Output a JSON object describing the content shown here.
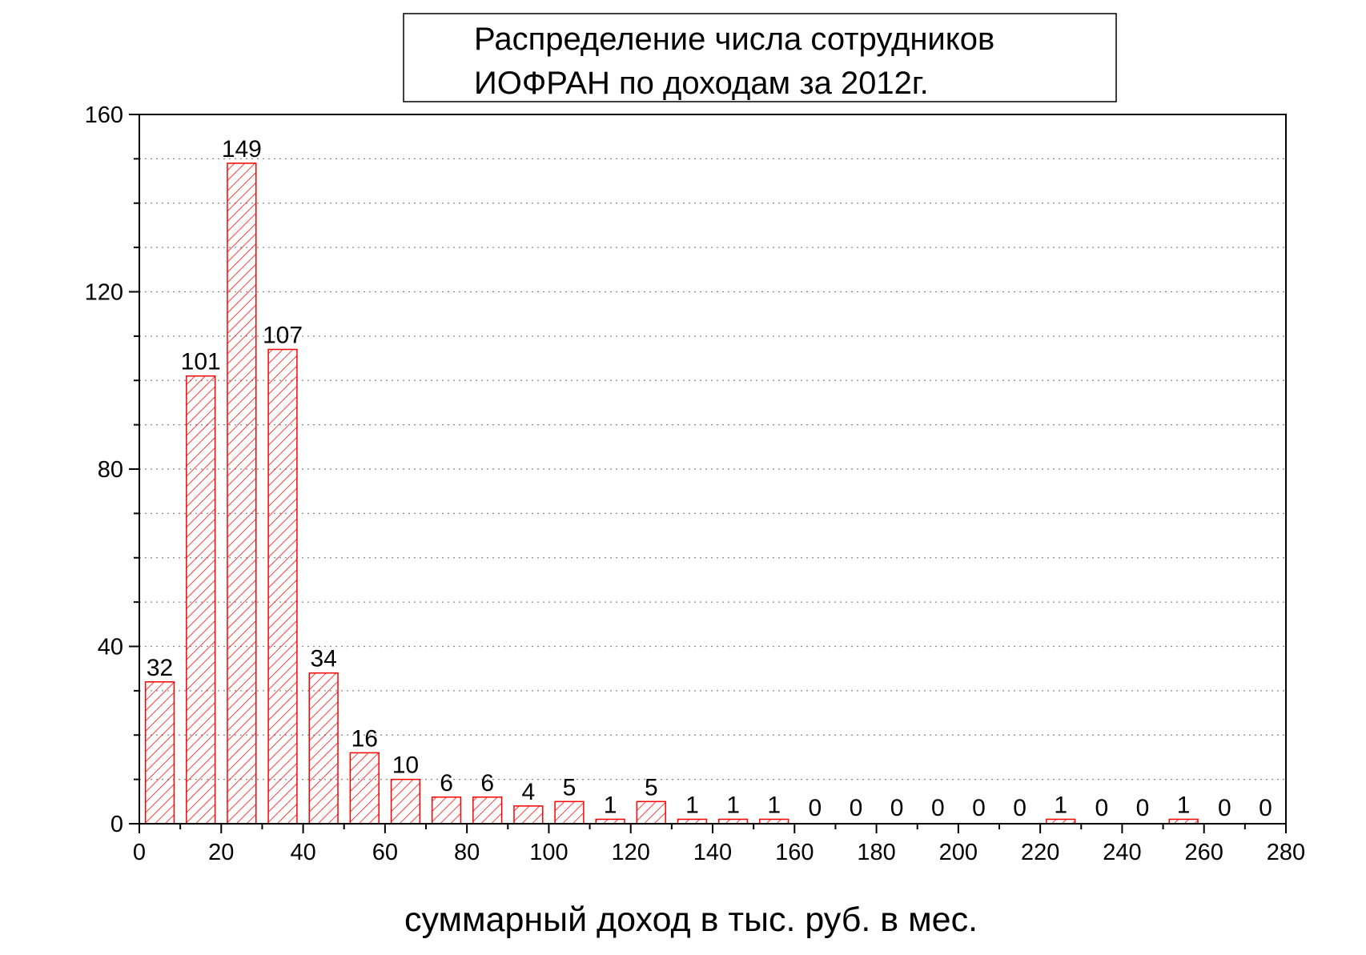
{
  "chart_data": {
    "type": "bar",
    "title_lines": [
      "Распределение числа сотрудников",
      "ИОФРАН по доходам за 2012г."
    ],
    "xlabel": "суммарный доход в тыс. руб. в мес.",
    "ylabel": "",
    "xlim": [
      0,
      280
    ],
    "ylim": [
      0,
      160
    ],
    "x_ticks": [
      0,
      20,
      40,
      60,
      80,
      100,
      120,
      140,
      160,
      180,
      200,
      220,
      240,
      260,
      280
    ],
    "y_ticks": [
      0,
      40,
      80,
      120,
      160
    ],
    "y_minor_step": 10,
    "y_grid_step": 10,
    "grid": true,
    "bar_color": "#ff0000",
    "bar_fill": "hatched",
    "bar_width": 7,
    "x": [
      5,
      15,
      25,
      35,
      45,
      55,
      65,
      75,
      85,
      95,
      105,
      115,
      125,
      135,
      145,
      155,
      165,
      175,
      185,
      195,
      205,
      215,
      225,
      235,
      245,
      255,
      265,
      275
    ],
    "values": [
      32,
      101,
      149,
      107,
      34,
      16,
      10,
      6,
      6,
      4,
      5,
      1,
      5,
      1,
      1,
      1,
      0,
      0,
      0,
      0,
      0,
      0,
      1,
      0,
      0,
      1,
      0,
      0
    ],
    "data_labels": [
      "32",
      "101",
      "149",
      "107",
      "34",
      "16",
      "10",
      "6",
      "6",
      "4",
      "5",
      "1",
      "5",
      "1",
      "1",
      "1",
      "0",
      "0",
      "0",
      "0",
      "0",
      "0",
      "1",
      "0",
      "0",
      "1",
      "0",
      "0"
    ]
  }
}
